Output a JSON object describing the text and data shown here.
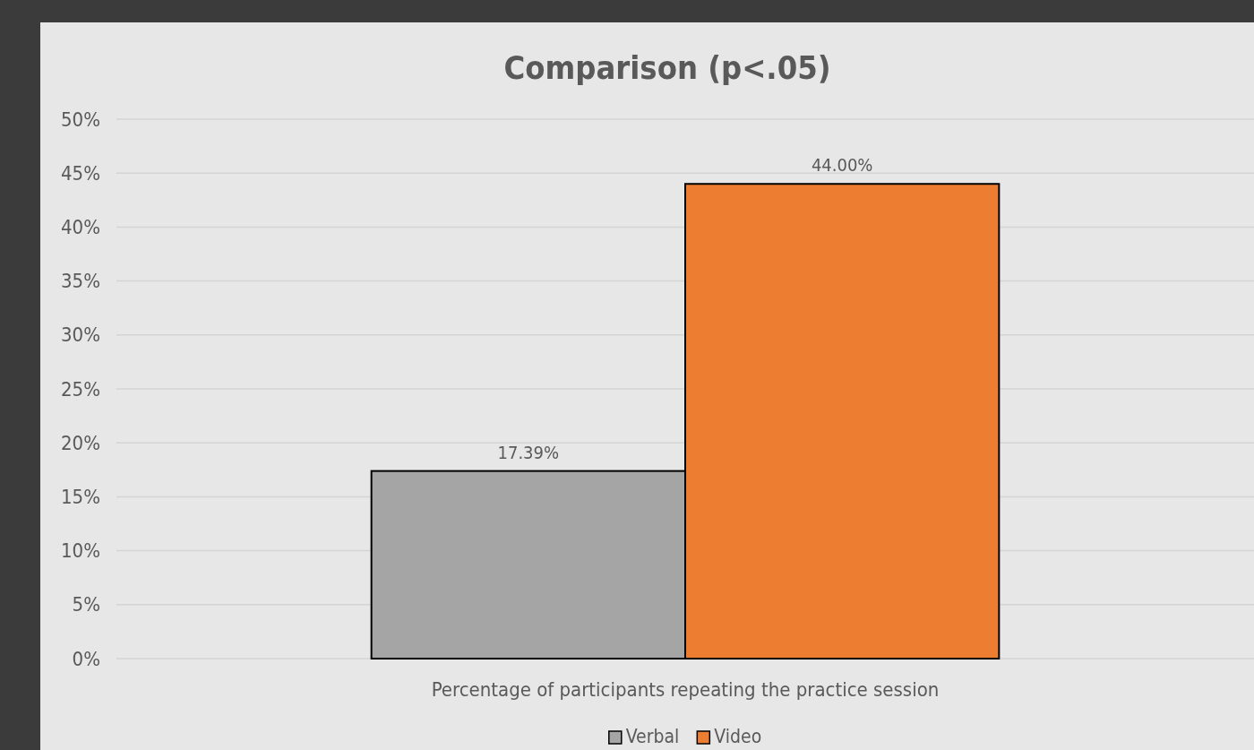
{
  "chart_data": {
    "type": "bar",
    "title": "Comparison (p<.05)",
    "categories": [
      "Percentage of participants repeating the practice session"
    ],
    "series": [
      {
        "name": "Verbal",
        "color": "#a5a5a5",
        "values": [
          17.39
        ],
        "value_labels": [
          "17.39%"
        ]
      },
      {
        "name": "Video",
        "color": "#ed7d31",
        "values": [
          44.0
        ],
        "value_labels": [
          "44.00%"
        ]
      }
    ],
    "ylim": [
      0,
      50
    ],
    "yticks": [
      {
        "value": 0,
        "label": "0%"
      },
      {
        "value": 5,
        "label": "5%"
      },
      {
        "value": 10,
        "label": "10%"
      },
      {
        "value": 15,
        "label": "15%"
      },
      {
        "value": 20,
        "label": "20%"
      },
      {
        "value": 25,
        "label": "25%"
      },
      {
        "value": 30,
        "label": "30%"
      },
      {
        "value": 35,
        "label": "35%"
      },
      {
        "value": 40,
        "label": "40%"
      },
      {
        "value": 45,
        "label": "45%"
      },
      {
        "value": 50,
        "label": "50%"
      }
    ],
    "grid": "y",
    "legend": "bottom"
  }
}
